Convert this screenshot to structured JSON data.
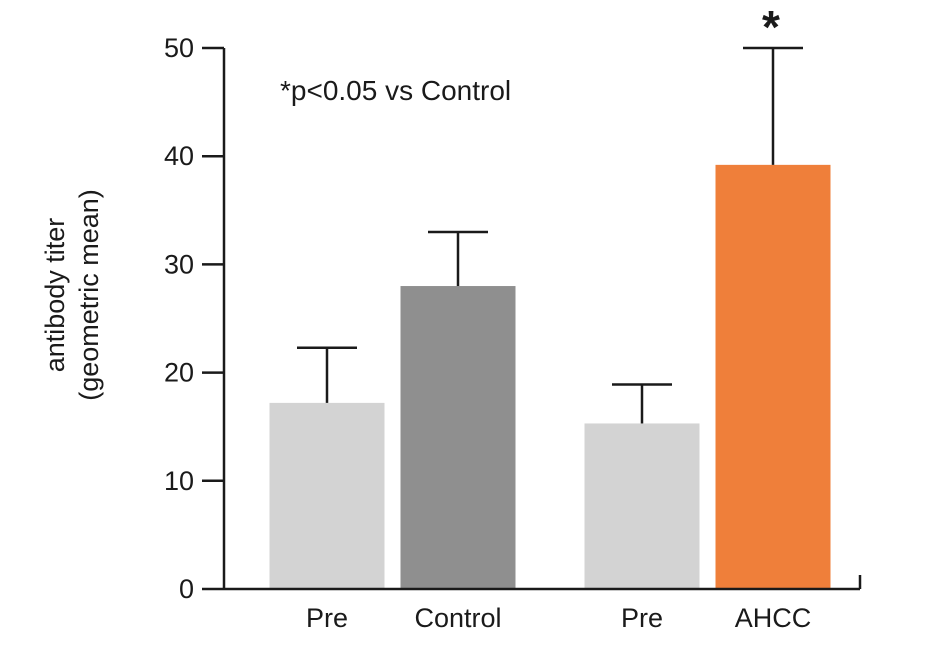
{
  "chart_data": {
    "type": "bar",
    "categories": [
      "Pre",
      "Control",
      "Pre",
      "AHCC"
    ],
    "values": [
      17.2,
      28.0,
      15.3,
      39.2
    ],
    "error_upper": [
      22.3,
      33.0,
      18.9,
      50.0
    ],
    "bar_colors": [
      "#d3d3d3",
      "#8f8f8f",
      "#d3d3d3",
      "#ef7f3a"
    ],
    "significance": [
      null,
      null,
      null,
      "*"
    ],
    "annotation": "*p<0.05 vs Control",
    "title": "",
    "xlabel": "",
    "ylabel_line1": "antibody titer",
    "ylabel_line2": "(geometric mean)",
    "ylim": [
      0,
      50
    ],
    "yticks": [
      0,
      10,
      20,
      30,
      40,
      50
    ],
    "grid": false,
    "legend": "none"
  }
}
